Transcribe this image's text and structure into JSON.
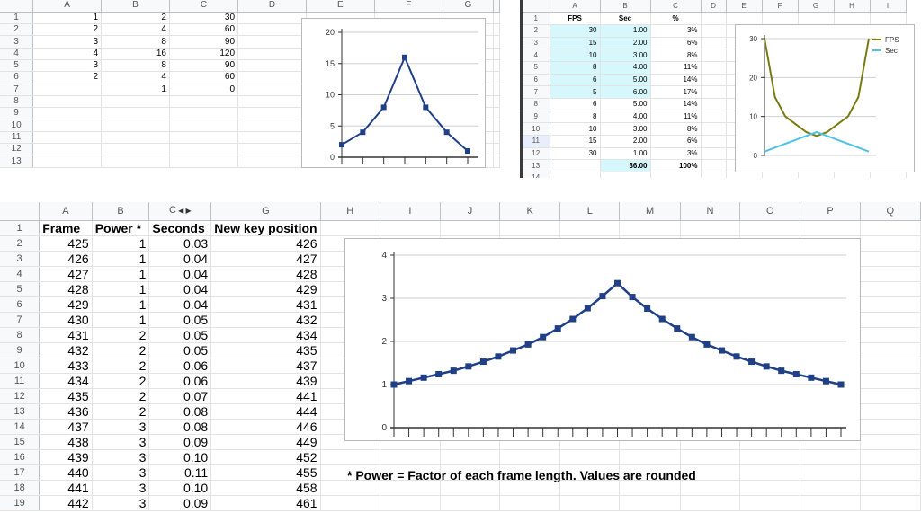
{
  "panel_top_left": {
    "columns": [
      "A",
      "B",
      "C",
      "D",
      "E",
      "F",
      "G"
    ],
    "rows": [
      [
        "1",
        "2",
        "30"
      ],
      [
        "2",
        "4",
        "60"
      ],
      [
        "3",
        "8",
        "90"
      ],
      [
        "4",
        "16",
        "120"
      ],
      [
        "3",
        "8",
        "90"
      ],
      [
        "2",
        "4",
        "60"
      ],
      [
        "",
        "1",
        "0"
      ],
      [
        "",
        "",
        ""
      ],
      [
        "",
        "",
        ""
      ],
      [
        "",
        "",
        ""
      ],
      [
        "",
        "",
        ""
      ],
      [
        "",
        "",
        ""
      ],
      [
        "",
        "",
        ""
      ]
    ]
  },
  "panel_top_right": {
    "columns": [
      "A",
      "B",
      "C",
      "D",
      "E",
      "F",
      "G",
      "H",
      "I"
    ],
    "headers": [
      "FPS",
      "Sec",
      "%"
    ],
    "rows": [
      [
        "30",
        "1.00",
        "3%"
      ],
      [
        "15",
        "2.00",
        "6%"
      ],
      [
        "10",
        "3.00",
        "8%"
      ],
      [
        "8",
        "4.00",
        "11%"
      ],
      [
        "6",
        "5.00",
        "14%"
      ],
      [
        "5",
        "6.00",
        "17%"
      ],
      [
        "6",
        "5.00",
        "14%"
      ],
      [
        "8",
        "4.00",
        "11%"
      ],
      [
        "10",
        "3.00",
        "8%"
      ],
      [
        "15",
        "2.00",
        "6%"
      ],
      [
        "30",
        "1.00",
        "3%"
      ],
      [
        "",
        "36.00",
        "100%"
      ],
      [
        "",
        "",
        ""
      ]
    ]
  },
  "panel_bottom": {
    "columns": [
      "A",
      "B",
      "C",
      "G",
      "H",
      "I",
      "J",
      "K",
      "L",
      "M",
      "N",
      "O",
      "P",
      "Q"
    ],
    "headers": [
      "Frame",
      "Power *",
      "Seconds",
      "New key position"
    ],
    "rows": [
      [
        "425",
        "1",
        "0.03",
        "426"
      ],
      [
        "426",
        "1",
        "0.04",
        "427"
      ],
      [
        "427",
        "1",
        "0.04",
        "428"
      ],
      [
        "428",
        "1",
        "0.04",
        "429"
      ],
      [
        "429",
        "1",
        "0.04",
        "431"
      ],
      [
        "430",
        "1",
        "0.05",
        "432"
      ],
      [
        "431",
        "2",
        "0.05",
        "434"
      ],
      [
        "432",
        "2",
        "0.05",
        "435"
      ],
      [
        "433",
        "2",
        "0.06",
        "437"
      ],
      [
        "434",
        "2",
        "0.06",
        "439"
      ],
      [
        "435",
        "2",
        "0.07",
        "441"
      ],
      [
        "436",
        "2",
        "0.08",
        "444"
      ],
      [
        "437",
        "3",
        "0.08",
        "446"
      ],
      [
        "438",
        "3",
        "0.09",
        "449"
      ],
      [
        "439",
        "3",
        "0.10",
        "452"
      ],
      [
        "440",
        "3",
        "0.11",
        "455"
      ],
      [
        "441",
        "3",
        "0.10",
        "458"
      ],
      [
        "442",
        "3",
        "0.09",
        "461"
      ]
    ],
    "footnote": "* Power = Factor of each frame length. Values are rounded"
  },
  "chart_data": [
    {
      "type": "line",
      "ylim": [
        0,
        20
      ],
      "yticks": [
        "0",
        "5",
        "10",
        "15",
        "20"
      ],
      "x": [
        1,
        2,
        3,
        4,
        5,
        6,
        7
      ],
      "series": [
        {
          "values": [
            2,
            4,
            8,
            16,
            8,
            4,
            1
          ],
          "color": "#1f3f86"
        }
      ]
    },
    {
      "type": "line",
      "ylim": [
        0,
        30
      ],
      "yticks": [
        "0",
        "10",
        "20",
        "30"
      ],
      "legend": "top-right",
      "series": [
        {
          "name": "FPS",
          "color": "#7a7a12",
          "values": [
            30,
            15,
            10,
            8,
            6,
            5,
            6,
            8,
            10,
            15,
            30
          ]
        },
        {
          "name": "Sec",
          "color": "#4ec3e8",
          "values": [
            1,
            2,
            3,
            4,
            5,
            6,
            5,
            4,
            3,
            2,
            1
          ]
        }
      ]
    },
    {
      "type": "line",
      "ylim": [
        0,
        4
      ],
      "yticks": [
        "0",
        "1",
        "2",
        "3",
        "4"
      ],
      "series": [
        {
          "color": "#1f3f86",
          "values": [
            1,
            1.08,
            1.16,
            1.24,
            1.32,
            1.42,
            1.53,
            1.65,
            1.79,
            1.93,
            2.1,
            2.3,
            2.52,
            2.77,
            3.05,
            3.35,
            3.03,
            2.76,
            2.52,
            2.3,
            2.1,
            1.93,
            1.79,
            1.65,
            1.53,
            1.42,
            1.32,
            1.24,
            1.16,
            1.08,
            1
          ]
        }
      ]
    }
  ]
}
